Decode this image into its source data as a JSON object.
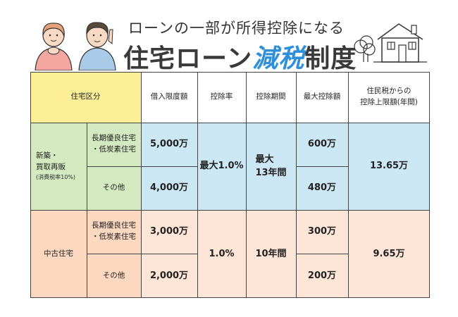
{
  "header": {
    "subtitle": "ローンの一部が所得控除になる",
    "title_part1": "住宅ローン",
    "title_highlight": "減税",
    "title_part2": "制度"
  },
  "colors": {
    "header_yellow": "#fcef98",
    "blue": "#cce7f4",
    "green": "#d3e9bf",
    "orange_light": "#fcd8c0",
    "orange_pale": "#fde6d7",
    "title_blue": "#2f8fd8"
  },
  "table": {
    "headers": {
      "category": "住宅区分",
      "borrow_limit": "借入限度額",
      "rate": "控除率",
      "period": "控除期間",
      "max_deduction": "最大控除額",
      "resident_tax_line1": "住民税からの",
      "resident_tax_line2": "控除上限額(年間)"
    },
    "new": {
      "label_line1": "新築・",
      "label_line2": "買取再販",
      "label_note": "(消費税率10%)",
      "sub1_line1": "長期優良住宅",
      "sub1_line2": "・低炭素住宅",
      "sub2": "その他",
      "limit1": "5,000万",
      "limit2": "4,000万",
      "rate": "最大1.0%",
      "period_line1": "最大",
      "period_line2": "13年間",
      "max1": "600万",
      "max2": "480万",
      "resident": "13.65万"
    },
    "used": {
      "label": "中古住宅",
      "sub1_line1": "長期優良住宅",
      "sub1_line2": "・低炭素住宅",
      "sub2": "その他",
      "limit1": "3,000万",
      "limit2": "2,000万",
      "rate": "1.0%",
      "period": "10年間",
      "max1": "300万",
      "max2": "200万",
      "resident": "9.65万"
    }
  }
}
